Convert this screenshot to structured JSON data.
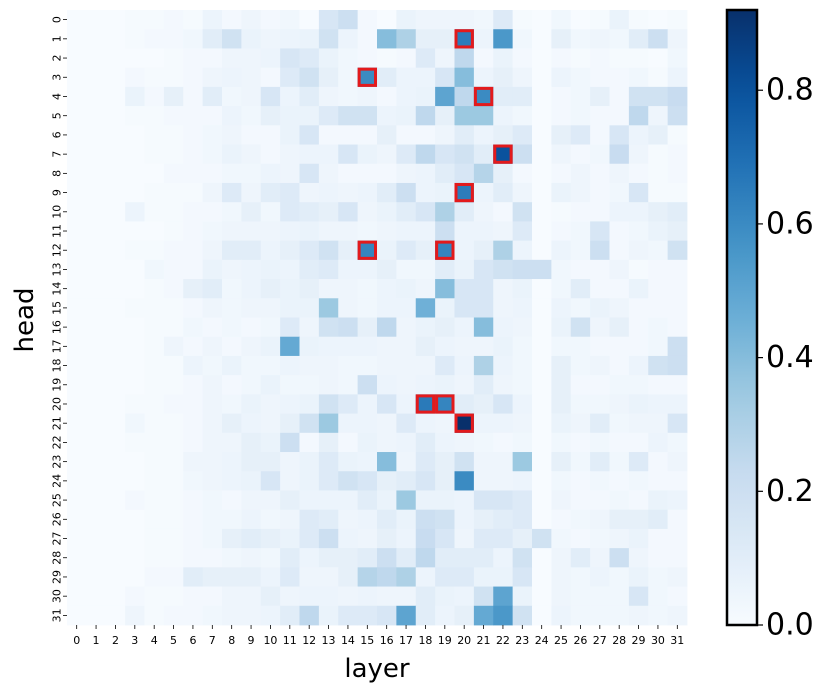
{
  "chart_data": {
    "type": "heatmap",
    "xlabel": "layer",
    "ylabel": "head",
    "x_ticks": [
      "0",
      "1",
      "2",
      "3",
      "4",
      "5",
      "6",
      "7",
      "8",
      "9",
      "10",
      "11",
      "12",
      "13",
      "14",
      "15",
      "16",
      "17",
      "18",
      "19",
      "20",
      "21",
      "22",
      "23",
      "24",
      "25",
      "26",
      "27",
      "28",
      "29",
      "30",
      "31"
    ],
    "y_ticks": [
      "0",
      "1",
      "2",
      "3",
      "4",
      "5",
      "6",
      "7",
      "8",
      "9",
      "10",
      "11",
      "12",
      "13",
      "14",
      "15",
      "16",
      "17",
      "18",
      "19",
      "20",
      "21",
      "22",
      "23",
      "24",
      "25",
      "26",
      "27",
      "28",
      "29",
      "30",
      "31"
    ],
    "colormap": "Blues",
    "vmin": 0,
    "vmax": 0.92,
    "colorbar_ticks": [
      "0.0",
      "0.2",
      "0.4",
      "0.6",
      "0.8"
    ],
    "colorbar_tick_values": [
      0,
      0.2,
      0.4,
      0.6,
      0.8
    ],
    "highlight_color": "#e31a1c",
    "highlighted_cells": [
      {
        "layer": 20,
        "head": 1
      },
      {
        "layer": 15,
        "head": 3
      },
      {
        "layer": 21,
        "head": 4
      },
      {
        "layer": 22,
        "head": 7
      },
      {
        "layer": 20,
        "head": 9
      },
      {
        "layer": 15,
        "head": 12
      },
      {
        "layer": 19,
        "head": 12
      },
      {
        "layer": 18,
        "head": 20
      },
      {
        "layer": 19,
        "head": 20
      },
      {
        "layer": 20,
        "head": 21
      }
    ],
    "values": [
      [
        0.0,
        0.0,
        0.0,
        0.01,
        0.01,
        0.02,
        0.01,
        0.05,
        0.02,
        0.04,
        0.02,
        0.03,
        0.0,
        0.15,
        0.2,
        0.02,
        0.0,
        0.06,
        0.04,
        0.04,
        0.04,
        0.03,
        0.12,
        0.01,
        0.0,
        0.03,
        0.0,
        0.01,
        0.06,
        0.01,
        0.0,
        0.01
      ],
      [
        0.0,
        0.0,
        0.0,
        0.01,
        0.02,
        0.02,
        0.03,
        0.1,
        0.18,
        0.06,
        0.04,
        0.05,
        0.06,
        0.18,
        0.05,
        0.02,
        0.4,
        0.3,
        0.08,
        0.08,
        0.65,
        0.05,
        0.55,
        0.03,
        0.0,
        0.08,
        0.03,
        0.04,
        0.03,
        0.1,
        0.2,
        0.04
      ],
      [
        0.0,
        0.0,
        0.0,
        0.0,
        0.0,
        0.01,
        0.02,
        0.02,
        0.04,
        0.04,
        0.05,
        0.15,
        0.12,
        0.06,
        0.03,
        0.02,
        0.01,
        0.02,
        0.12,
        0.04,
        0.25,
        0.02,
        0.06,
        0.02,
        0.0,
        0.02,
        0.01,
        0.02,
        0.01,
        0.01,
        0.0,
        0.03
      ],
      [
        0.0,
        0.0,
        0.0,
        0.02,
        0.01,
        0.01,
        0.02,
        0.04,
        0.05,
        0.04,
        0.02,
        0.12,
        0.18,
        0.08,
        0.03,
        0.6,
        0.1,
        0.05,
        0.05,
        0.15,
        0.4,
        0.05,
        0.08,
        0.04,
        0.0,
        0.05,
        0.03,
        0.02,
        0.02,
        0.03,
        0.01,
        0.05
      ],
      [
        0.0,
        0.0,
        0.0,
        0.06,
        0.02,
        0.08,
        0.02,
        0.1,
        0.03,
        0.04,
        0.15,
        0.05,
        0.1,
        0.04,
        0.03,
        0.04,
        0.02,
        0.05,
        0.06,
        0.5,
        0.25,
        0.6,
        0.1,
        0.1,
        0.0,
        0.02,
        0.03,
        0.08,
        0.02,
        0.18,
        0.18,
        0.22
      ],
      [
        0.0,
        0.0,
        0.0,
        0.01,
        0.01,
        0.02,
        0.02,
        0.02,
        0.05,
        0.03,
        0.08,
        0.06,
        0.06,
        0.12,
        0.18,
        0.18,
        0.05,
        0.06,
        0.25,
        0.08,
        0.35,
        0.35,
        0.05,
        0.03,
        0.0,
        0.02,
        0.03,
        0.02,
        0.02,
        0.25,
        0.04,
        0.2
      ],
      [
        0.0,
        0.0,
        0.0,
        0.0,
        0.01,
        0.01,
        0.02,
        0.03,
        0.04,
        0.02,
        0.02,
        0.06,
        0.15,
        0.02,
        0.02,
        0.02,
        0.08,
        0.02,
        0.02,
        0.04,
        0.1,
        0.05,
        0.08,
        0.12,
        0.0,
        0.08,
        0.12,
        0.02,
        0.15,
        0.05,
        0.08,
        0.01
      ],
      [
        0.0,
        0.0,
        0.0,
        0.0,
        0.01,
        0.01,
        0.02,
        0.03,
        0.06,
        0.04,
        0.02,
        0.04,
        0.05,
        0.05,
        0.15,
        0.06,
        0.04,
        0.12,
        0.25,
        0.15,
        0.18,
        0.1,
        0.8,
        0.2,
        0.0,
        0.04,
        0.02,
        0.03,
        0.22,
        0.04,
        0.01,
        0.02
      ],
      [
        0.0,
        0.0,
        0.0,
        0.0,
        0.0,
        0.02,
        0.02,
        0.02,
        0.03,
        0.03,
        0.05,
        0.04,
        0.15,
        0.04,
        0.02,
        0.02,
        0.02,
        0.04,
        0.05,
        0.1,
        0.15,
        0.28,
        0.08,
        0.02,
        0.0,
        0.02,
        0.04,
        0.02,
        0.04,
        0.02,
        0.01,
        0.02
      ],
      [
        0.0,
        0.0,
        0.0,
        0.0,
        0.01,
        0.01,
        0.01,
        0.04,
        0.12,
        0.04,
        0.1,
        0.12,
        0.04,
        0.05,
        0.04,
        0.05,
        0.1,
        0.2,
        0.05,
        0.06,
        0.65,
        0.05,
        0.1,
        0.04,
        0.0,
        0.06,
        0.04,
        0.02,
        0.03,
        0.15,
        0.01,
        0.01
      ],
      [
        0.0,
        0.0,
        0.0,
        0.05,
        0.01,
        0.01,
        0.02,
        0.02,
        0.03,
        0.08,
        0.03,
        0.12,
        0.1,
        0.08,
        0.15,
        0.04,
        0.06,
        0.1,
        0.15,
        0.3,
        0.1,
        0.04,
        0.02,
        0.18,
        0.0,
        0.01,
        0.02,
        0.02,
        0.05,
        0.05,
        0.08,
        0.1
      ],
      [
        0.0,
        0.0,
        0.0,
        0.0,
        0.0,
        0.01,
        0.02,
        0.03,
        0.04,
        0.04,
        0.04,
        0.05,
        0.06,
        0.04,
        0.04,
        0.03,
        0.04,
        0.05,
        0.05,
        0.2,
        0.05,
        0.05,
        0.04,
        0.12,
        0.0,
        0.02,
        0.03,
        0.15,
        0.02,
        0.03,
        0.06,
        0.08
      ],
      [
        0.0,
        0.0,
        0.0,
        0.01,
        0.01,
        0.02,
        0.02,
        0.04,
        0.1,
        0.1,
        0.05,
        0.08,
        0.12,
        0.18,
        0.08,
        0.62,
        0.06,
        0.12,
        0.08,
        0.62,
        0.05,
        0.08,
        0.3,
        0.05,
        0.0,
        0.05,
        0.03,
        0.2,
        0.02,
        0.04,
        0.03,
        0.18
      ],
      [
        0.0,
        0.0,
        0.0,
        0.0,
        0.03,
        0.02,
        0.02,
        0.06,
        0.04,
        0.05,
        0.06,
        0.05,
        0.1,
        0.12,
        0.05,
        0.05,
        0.08,
        0.03,
        0.03,
        0.1,
        0.06,
        0.15,
        0.18,
        0.2,
        0.2,
        0.03,
        0.02,
        0.02,
        0.04,
        0.01,
        0.02,
        0.02
      ],
      [
        0.0,
        0.0,
        0.0,
        0.0,
        0.01,
        0.02,
        0.08,
        0.1,
        0.03,
        0.05,
        0.08,
        0.06,
        0.08,
        0.04,
        0.04,
        0.03,
        0.05,
        0.06,
        0.04,
        0.4,
        0.15,
        0.15,
        0.04,
        0.06,
        0.0,
        0.03,
        0.1,
        0.02,
        0.02,
        0.06,
        0.02,
        0.02
      ],
      [
        0.0,
        0.0,
        0.0,
        0.01,
        0.01,
        0.01,
        0.02,
        0.04,
        0.03,
        0.04,
        0.04,
        0.06,
        0.06,
        0.35,
        0.04,
        0.03,
        0.05,
        0.05,
        0.45,
        0.06,
        0.15,
        0.15,
        0.04,
        0.05,
        0.0,
        0.05,
        0.03,
        0.06,
        0.04,
        0.02,
        0.02,
        0.02
      ],
      [
        0.0,
        0.0,
        0.0,
        0.0,
        0.01,
        0.01,
        0.03,
        0.02,
        0.03,
        0.02,
        0.03,
        0.12,
        0.04,
        0.18,
        0.2,
        0.08,
        0.25,
        0.04,
        0.06,
        0.08,
        0.05,
        0.4,
        0.05,
        0.04,
        0.0,
        0.06,
        0.18,
        0.04,
        0.08,
        0.02,
        0.03,
        0.02
      ],
      [
        0.0,
        0.0,
        0.0,
        0.0,
        0.01,
        0.04,
        0.02,
        0.04,
        0.02,
        0.04,
        0.06,
        0.48,
        0.06,
        0.05,
        0.05,
        0.05,
        0.04,
        0.04,
        0.08,
        0.05,
        0.04,
        0.04,
        0.06,
        0.03,
        0.0,
        0.03,
        0.03,
        0.02,
        0.02,
        0.02,
        0.03,
        0.2
      ],
      [
        0.0,
        0.0,
        0.0,
        0.0,
        0.01,
        0.01,
        0.05,
        0.03,
        0.06,
        0.03,
        0.03,
        0.05,
        0.04,
        0.04,
        0.03,
        0.03,
        0.04,
        0.04,
        0.04,
        0.12,
        0.05,
        0.3,
        0.05,
        0.03,
        0.0,
        0.08,
        0.03,
        0.04,
        0.02,
        0.05,
        0.18,
        0.2
      ],
      [
        0.0,
        0.0,
        0.0,
        0.0,
        0.01,
        0.01,
        0.02,
        0.04,
        0.02,
        0.03,
        0.06,
        0.03,
        0.03,
        0.04,
        0.03,
        0.2,
        0.05,
        0.04,
        0.05,
        0.06,
        0.04,
        0.1,
        0.04,
        0.03,
        0.0,
        0.08,
        0.02,
        0.02,
        0.03,
        0.03,
        0.02,
        0.02
      ],
      [
        0.0,
        0.0,
        0.0,
        0.01,
        0.01,
        0.02,
        0.02,
        0.04,
        0.03,
        0.06,
        0.04,
        0.05,
        0.06,
        0.18,
        0.12,
        0.05,
        0.15,
        0.05,
        0.66,
        0.62,
        0.1,
        0.08,
        0.15,
        0.05,
        0.0,
        0.08,
        0.03,
        0.03,
        0.04,
        0.06,
        0.05,
        0.05
      ],
      [
        0.0,
        0.0,
        0.0,
        0.03,
        0.01,
        0.01,
        0.02,
        0.04,
        0.08,
        0.05,
        0.04,
        0.08,
        0.18,
        0.35,
        0.05,
        0.05,
        0.04,
        0.12,
        0.05,
        0.04,
        0.92,
        0.05,
        0.05,
        0.04,
        0.0,
        0.06,
        0.04,
        0.1,
        0.03,
        0.04,
        0.04,
        0.15
      ],
      [
        0.0,
        0.0,
        0.0,
        0.01,
        0.01,
        0.01,
        0.02,
        0.04,
        0.04,
        0.08,
        0.06,
        0.2,
        0.02,
        0.08,
        0.02,
        0.06,
        0.04,
        0.05,
        0.1,
        0.05,
        0.04,
        0.03,
        0.02,
        0.03,
        0.0,
        0.03,
        0.02,
        0.03,
        0.02,
        0.02,
        0.05,
        0.03
      ],
      [
        0.0,
        0.0,
        0.0,
        0.0,
        0.01,
        0.01,
        0.04,
        0.04,
        0.05,
        0.08,
        0.08,
        0.04,
        0.06,
        0.12,
        0.06,
        0.05,
        0.4,
        0.04,
        0.12,
        0.08,
        0.18,
        0.04,
        0.04,
        0.35,
        0.0,
        0.08,
        0.03,
        0.1,
        0.03,
        0.12,
        0.02,
        0.04
      ],
      [
        0.0,
        0.0,
        0.0,
        0.0,
        0.01,
        0.01,
        0.03,
        0.04,
        0.05,
        0.06,
        0.15,
        0.04,
        0.06,
        0.12,
        0.18,
        0.15,
        0.08,
        0.1,
        0.15,
        0.08,
        0.6,
        0.04,
        0.04,
        0.05,
        0.0,
        0.03,
        0.02,
        0.03,
        0.02,
        0.03,
        0.02,
        0.02
      ],
      [
        0.0,
        0.0,
        0.0,
        0.02,
        0.01,
        0.01,
        0.02,
        0.03,
        0.02,
        0.04,
        0.04,
        0.08,
        0.05,
        0.05,
        0.05,
        0.1,
        0.06,
        0.35,
        0.06,
        0.06,
        0.05,
        0.15,
        0.15,
        0.12,
        0.0,
        0.04,
        0.02,
        0.02,
        0.03,
        0.02,
        0.06,
        0.05
      ],
      [
        0.0,
        0.0,
        0.0,
        0.0,
        0.01,
        0.01,
        0.02,
        0.03,
        0.03,
        0.05,
        0.03,
        0.04,
        0.12,
        0.1,
        0.04,
        0.05,
        0.1,
        0.06,
        0.2,
        0.18,
        0.05,
        0.08,
        0.1,
        0.12,
        0.0,
        0.02,
        0.03,
        0.04,
        0.08,
        0.08,
        0.1,
        0.02
      ],
      [
        0.0,
        0.0,
        0.0,
        0.0,
        0.01,
        0.01,
        0.02,
        0.03,
        0.08,
        0.1,
        0.08,
        0.06,
        0.12,
        0.2,
        0.05,
        0.04,
        0.08,
        0.05,
        0.22,
        0.15,
        0.04,
        0.12,
        0.12,
        0.08,
        0.18,
        0.03,
        0.02,
        0.03,
        0.04,
        0.06,
        0.02,
        0.02
      ],
      [
        0.0,
        0.0,
        0.0,
        0.0,
        0.01,
        0.01,
        0.02,
        0.02,
        0.03,
        0.04,
        0.03,
        0.1,
        0.05,
        0.08,
        0.08,
        0.1,
        0.2,
        0.1,
        0.25,
        0.1,
        0.1,
        0.1,
        0.05,
        0.18,
        0.0,
        0.04,
        0.1,
        0.04,
        0.2,
        0.04,
        0.02,
        0.02
      ],
      [
        0.0,
        0.0,
        0.0,
        0.0,
        0.02,
        0.02,
        0.1,
        0.08,
        0.08,
        0.08,
        0.05,
        0.12,
        0.04,
        0.04,
        0.08,
        0.28,
        0.25,
        0.3,
        0.05,
        0.12,
        0.12,
        0.06,
        0.06,
        0.15,
        0.0,
        0.04,
        0.03,
        0.05,
        0.03,
        0.06,
        0.03,
        0.04
      ],
      [
        0.0,
        0.0,
        0.0,
        0.02,
        0.01,
        0.01,
        0.02,
        0.02,
        0.04,
        0.04,
        0.08,
        0.04,
        0.05,
        0.05,
        0.04,
        0.05,
        0.04,
        0.04,
        0.1,
        0.06,
        0.05,
        0.18,
        0.5,
        0.06,
        0.0,
        0.04,
        0.03,
        0.03,
        0.03,
        0.15,
        0.03,
        0.02
      ],
      [
        0.0,
        0.0,
        0.0,
        0.04,
        0.01,
        0.02,
        0.02,
        0.03,
        0.04,
        0.04,
        0.05,
        0.1,
        0.25,
        0.06,
        0.12,
        0.12,
        0.15,
        0.5,
        0.1,
        0.05,
        0.08,
        0.48,
        0.55,
        0.18,
        0.0,
        0.05,
        0.03,
        0.03,
        0.03,
        0.04,
        0.03,
        0.04
      ]
    ]
  }
}
